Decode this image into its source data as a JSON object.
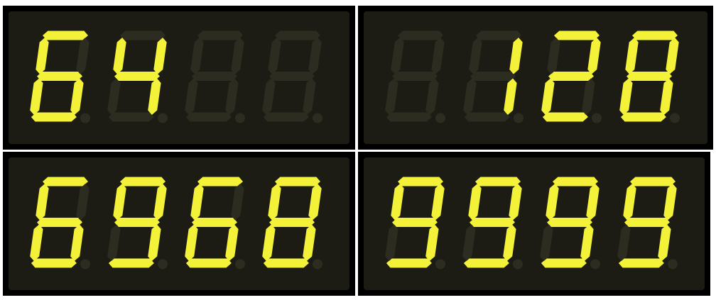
{
  "displays": [
    {
      "digits": [
        "6",
        "4",
        "",
        ""
      ],
      "text": "64"
    },
    {
      "digits": [
        "",
        "1",
        "2",
        "8"
      ],
      "text": "128"
    },
    {
      "digits": [
        "6",
        "9",
        "6",
        "8"
      ],
      "text": "6968"
    },
    {
      "digits": [
        "9",
        "9",
        "9",
        "9"
      ],
      "text": "9999"
    }
  ],
  "colors": {
    "segment_on": "#f4f238",
    "segment_off": "#2c2c20",
    "panel_background": "#1c1c14",
    "panel_border": "#000000"
  }
}
